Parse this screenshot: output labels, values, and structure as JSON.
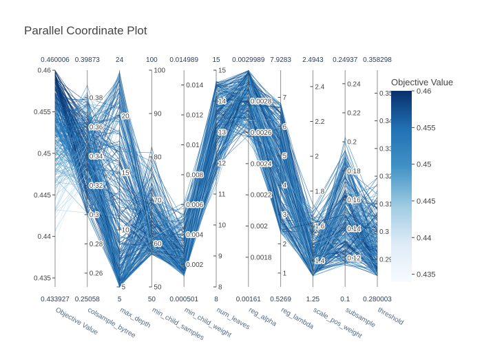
{
  "chart_data": {
    "type": "parallel_coordinates",
    "title": "Parallel Coordinate Plot",
    "colorbar": {
      "title": "Objective Value",
      "range": [
        0.433927,
        0.460006
      ],
      "ticks": [
        "0.46",
        "0.455",
        "0.45",
        "0.445",
        "0.44",
        "0.435"
      ],
      "colorscale": [
        "#f7fbff",
        "#08306b"
      ]
    },
    "axes": [
      {
        "name": "Objective Value",
        "min": 0.433927,
        "max": 0.460006,
        "min_label": "0.433927",
        "max_label": "0.460006",
        "ticks": [
          "0.46",
          "0.455",
          "0.45",
          "0.445",
          "0.44",
          "0.435"
        ]
      },
      {
        "name": "colsample_bytree",
        "min": 0.25058,
        "max": 0.39873,
        "min_label": "0.25058",
        "max_label": "0.39873",
        "ticks": [
          "0.38",
          "0.36",
          "0.34",
          "0.32",
          "0.3",
          "0.28",
          "0.26"
        ]
      },
      {
        "name": "max_depth",
        "min": 5,
        "max": 24,
        "min_label": "5",
        "max_label": "24",
        "ticks": [
          "20",
          "15",
          "10",
          "5"
        ]
      },
      {
        "name": "min_child_samples",
        "min": 50,
        "max": 100,
        "min_label": "50",
        "max_label": "100",
        "ticks": [
          "100",
          "90",
          "80",
          "70",
          "60",
          "50"
        ]
      },
      {
        "name": "min_child_weight",
        "min": 0.000501,
        "max": 0.014989,
        "min_label": "0.000501",
        "max_label": "0.014989",
        "ticks": [
          "0.014",
          "0.012",
          "0.01",
          "0.008",
          "0.006",
          "0.004",
          "0.002"
        ]
      },
      {
        "name": "num_leaves",
        "min": 8,
        "max": 15,
        "min_label": "8",
        "max_label": "15",
        "ticks": [
          "15",
          "14",
          "13",
          "12",
          "11",
          "10",
          "9",
          "8"
        ]
      },
      {
        "name": "reg_alpha",
        "min": 0.00161,
        "max": 0.0029989,
        "min_label": "0.00161",
        "max_label": "0.0029989",
        "ticks": [
          "0.0028",
          "0.0026",
          "0.0024",
          "0.0022",
          "0.002",
          "0.0018"
        ]
      },
      {
        "name": "reg_lambda",
        "min": 0.5269,
        "max": 7.9283,
        "min_label": "0.5269",
        "max_label": "7.9283",
        "ticks": [
          "7",
          "6",
          "5",
          "4",
          "3",
          "2",
          "1"
        ]
      },
      {
        "name": "scale_pos_weight",
        "min": 1.25,
        "max": 2.4943,
        "min_label": "1.25",
        "max_label": "2.4943",
        "ticks": [
          "2.4",
          "2.2",
          "2",
          "1.8",
          "1.6",
          "1.4"
        ]
      },
      {
        "name": "subsample",
        "min": 0.1,
        "max": 0.24937,
        "min_label": "0.1",
        "max_label": "0.24937",
        "ticks": [
          "0.24",
          "0.22",
          "0.2",
          "0.18",
          "0.16",
          "0.14",
          "0.12"
        ]
      },
      {
        "name": "threshold",
        "min": 0.280003,
        "max": 0.358298,
        "min_label": "0.280003",
        "max_label": "0.358298",
        "ticks": [
          "0.35",
          "0.34",
          "0.33",
          "0.32",
          "0.31",
          "0.3",
          "0.29"
        ]
      }
    ]
  }
}
